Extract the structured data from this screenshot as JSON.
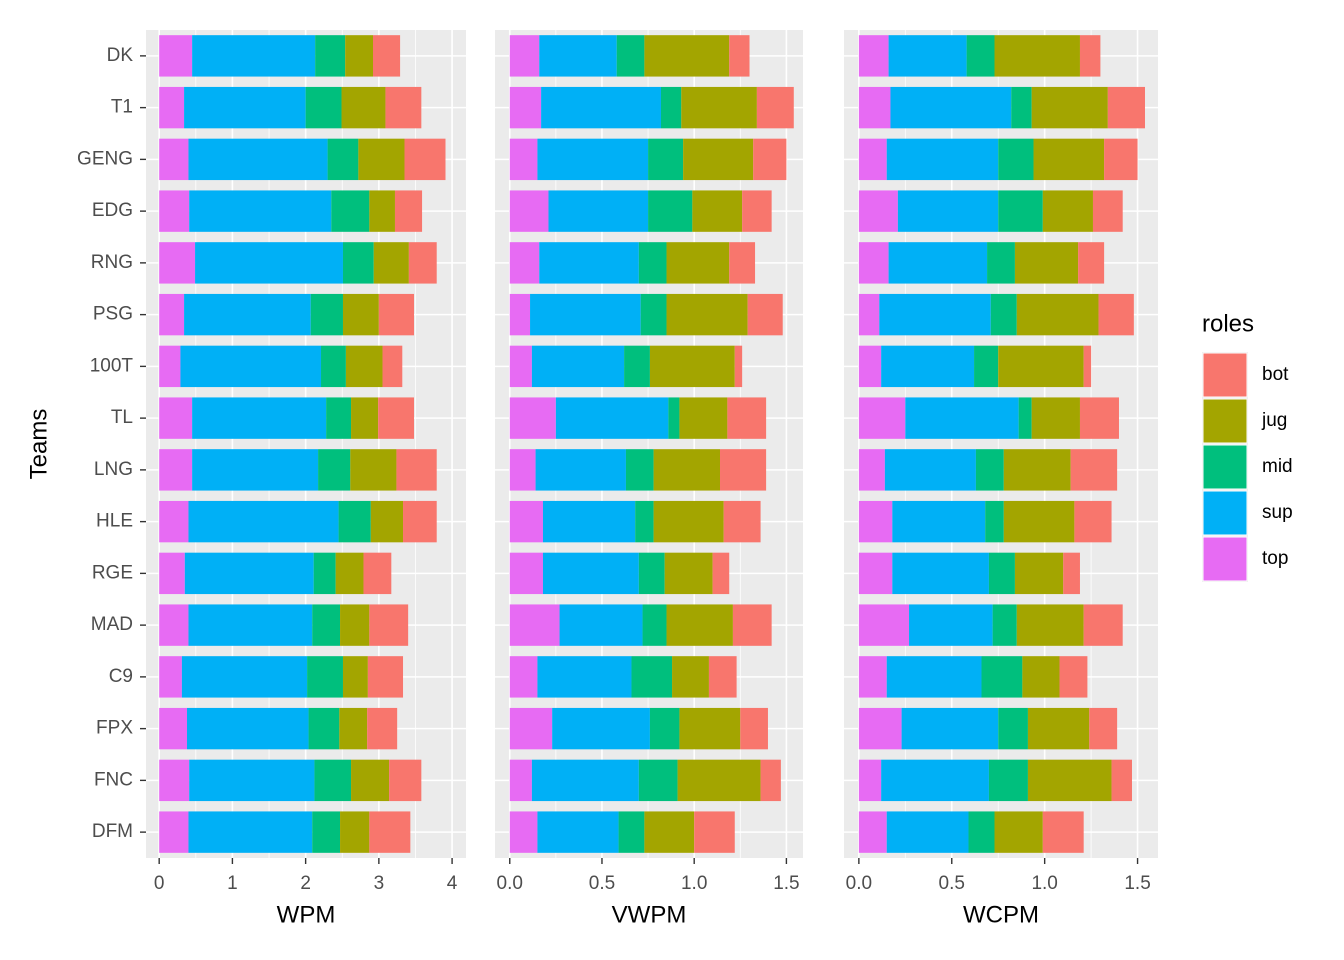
{
  "chart_data": {
    "type": "bar",
    "orientation": "horizontal",
    "stacked": true,
    "y_label": "Teams",
    "legend_title": "roles",
    "categories": [
      "DK",
      "T1",
      "GENG",
      "EDG",
      "RNG",
      "PSG",
      "100T",
      "TL",
      "LNG",
      "HLE",
      "RGE",
      "MAD",
      "C9",
      "FPX",
      "FNC",
      "DFM"
    ],
    "series": [
      {
        "name": "top",
        "color": "#E76BF3"
      },
      {
        "name": "sup",
        "color": "#00B0F6"
      },
      {
        "name": "mid",
        "color": "#00BF7D"
      },
      {
        "name": "jug",
        "color": "#A3A500"
      },
      {
        "name": "bot",
        "color": "#F8766D"
      }
    ],
    "panels": [
      {
        "x_label": "WPM",
        "xlim": [
          -0.18,
          4.19
        ],
        "xticks": [
          0,
          1,
          2,
          3,
          4
        ],
        "values": [
          [
            0.45,
            0.34,
            0.4,
            0.41,
            0.49,
            0.34,
            0.29,
            0.45,
            0.45,
            0.4,
            0.35,
            0.4,
            0.31,
            0.38,
            0.41,
            0.4
          ],
          [
            1.68,
            1.66,
            1.9,
            1.94,
            2.02,
            1.73,
            1.92,
            1.83,
            1.72,
            2.05,
            1.76,
            1.69,
            1.71,
            1.66,
            1.71,
            1.69
          ],
          [
            0.41,
            0.49,
            0.42,
            0.52,
            0.42,
            0.44,
            0.34,
            0.34,
            0.44,
            0.44,
            0.3,
            0.38,
            0.49,
            0.42,
            0.5,
            0.38
          ],
          [
            0.38,
            0.6,
            0.63,
            0.35,
            0.48,
            0.49,
            0.5,
            0.37,
            0.63,
            0.44,
            0.38,
            0.4,
            0.34,
            0.38,
            0.52,
            0.4
          ],
          [
            0.37,
            0.49,
            0.56,
            0.37,
            0.38,
            0.48,
            0.27,
            0.49,
            0.55,
            0.46,
            0.38,
            0.53,
            0.48,
            0.41,
            0.44,
            0.56
          ]
        ]
      },
      {
        "x_label": "VWPM",
        "xlim": [
          -0.08,
          1.59
        ],
        "xticks": [
          {
            "value": 0,
            "label": "0.0"
          },
          0.5,
          {
            "value": 1,
            "label": "1.0"
          },
          1.5
        ],
        "values": [
          [
            0.16,
            0.17,
            0.15,
            0.21,
            0.16,
            0.11,
            0.12,
            0.25,
            0.14,
            0.18,
            0.18,
            0.27,
            0.15,
            0.23,
            0.12,
            0.15
          ],
          [
            0.42,
            0.65,
            0.6,
            0.54,
            0.54,
            0.6,
            0.5,
            0.61,
            0.49,
            0.5,
            0.52,
            0.45,
            0.51,
            0.53,
            0.58,
            0.44
          ],
          [
            0.15,
            0.11,
            0.19,
            0.24,
            0.15,
            0.14,
            0.14,
            0.06,
            0.15,
            0.1,
            0.14,
            0.13,
            0.22,
            0.16,
            0.21,
            0.14
          ],
          [
            0.46,
            0.41,
            0.38,
            0.27,
            0.34,
            0.44,
            0.46,
            0.26,
            0.36,
            0.38,
            0.26,
            0.36,
            0.2,
            0.33,
            0.45,
            0.27
          ],
          [
            0.11,
            0.2,
            0.18,
            0.16,
            0.14,
            0.19,
            0.04,
            0.21,
            0.25,
            0.2,
            0.09,
            0.21,
            0.15,
            0.15,
            0.11,
            0.22
          ]
        ]
      },
      {
        "x_label": "WCPM",
        "xlim": [
          -0.08,
          1.61
        ],
        "xticks": [
          {
            "value": 0,
            "label": "0.0"
          },
          0.5,
          {
            "value": 1,
            "label": "1.0"
          },
          1.5
        ],
        "values": [
          [
            0.16,
            0.17,
            0.15,
            0.21,
            0.16,
            0.11,
            0.12,
            0.25,
            0.14,
            0.18,
            0.18,
            0.27,
            0.15,
            0.23,
            0.12,
            0.15
          ],
          [
            0.42,
            0.65,
            0.6,
            0.54,
            0.53,
            0.6,
            0.5,
            0.61,
            0.49,
            0.5,
            0.52,
            0.45,
            0.51,
            0.52,
            0.58,
            0.44
          ],
          [
            0.15,
            0.11,
            0.19,
            0.24,
            0.15,
            0.14,
            0.13,
            0.07,
            0.15,
            0.1,
            0.14,
            0.13,
            0.22,
            0.16,
            0.21,
            0.14
          ],
          [
            0.46,
            0.41,
            0.38,
            0.27,
            0.34,
            0.44,
            0.46,
            0.26,
            0.36,
            0.38,
            0.26,
            0.36,
            0.2,
            0.33,
            0.45,
            0.26
          ],
          [
            0.11,
            0.2,
            0.18,
            0.16,
            0.14,
            0.19,
            0.04,
            0.21,
            0.25,
            0.2,
            0.09,
            0.21,
            0.15,
            0.15,
            0.11,
            0.22
          ]
        ]
      }
    ]
  }
}
